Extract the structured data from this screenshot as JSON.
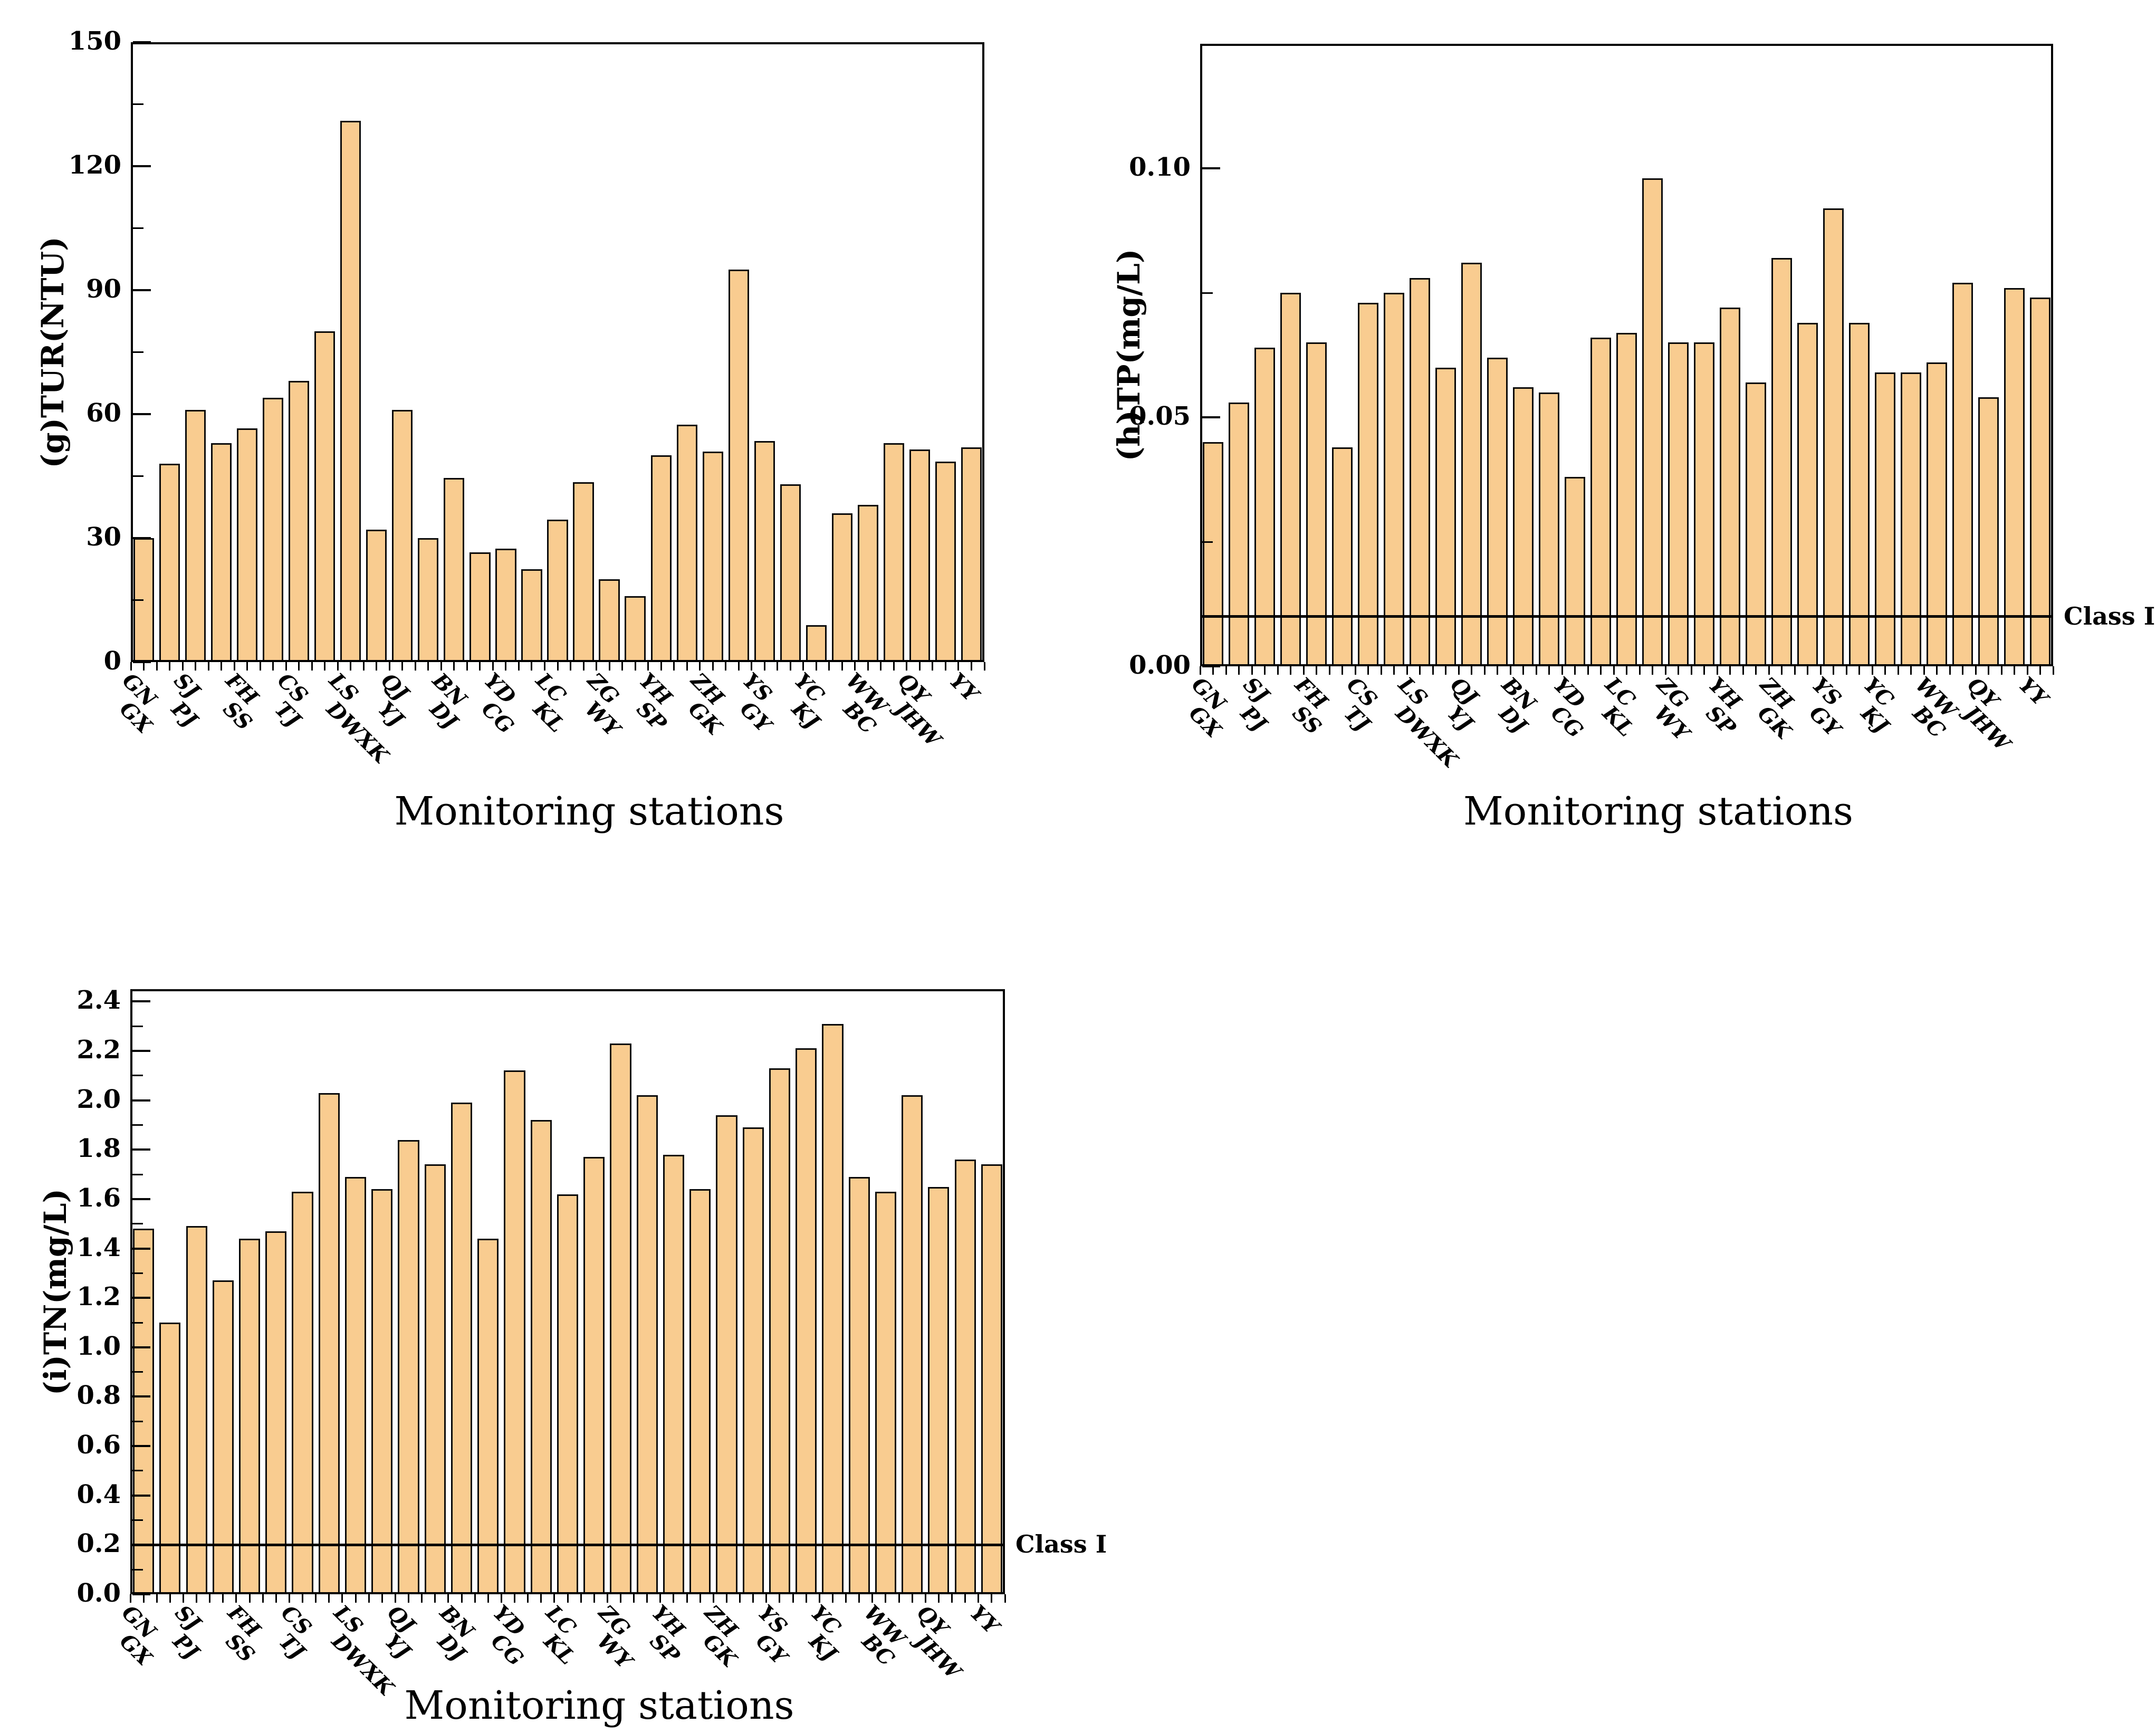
{
  "figure": {
    "xlabel": "Monitoring stations",
    "class_label": "Class I",
    "bar_fill": "#F9CC90",
    "bar_edge": "#0a0a0a",
    "class_line_color": "#000000"
  },
  "categories": [
    "GN",
    "GX",
    "SJ",
    "PJ",
    "FH",
    "SS",
    "CS",
    "TJ",
    "LS",
    "DWXK",
    "QJ",
    "YJ",
    "BN",
    "DJ",
    "YD",
    "CG",
    "LC",
    "KL",
    "ZG",
    "WY",
    "YH",
    "SP",
    "ZH",
    "GK",
    "YS",
    "GY",
    "YC",
    "KJ",
    "WW",
    "BC",
    "QY",
    "JHW",
    "YY"
  ],
  "chart_data": [
    {
      "type": "bar",
      "title": "",
      "ylabel": "(g)TUR(NTU)",
      "xlabel": "Monitoring stations",
      "categories": [
        "GN",
        "GX",
        "SJ",
        "PJ",
        "FH",
        "SS",
        "CS",
        "TJ",
        "LS",
        "DWXK",
        "QJ",
        "YJ",
        "BN",
        "DJ",
        "YD",
        "CG",
        "LC",
        "KL",
        "ZG",
        "WY",
        "YH",
        "SP",
        "ZH",
        "GK",
        "YS",
        "GY",
        "YC",
        "KJ",
        "WW",
        "BC",
        "QY",
        "JHW",
        "YY"
      ],
      "values": [
        30,
        48,
        61,
        53,
        56.5,
        64,
        68,
        80,
        131,
        32,
        61,
        30,
        44.5,
        26.5,
        27.5,
        22.5,
        34.5,
        43.5,
        20,
        16,
        50,
        57.5,
        51,
        95,
        53.5,
        43,
        9,
        36,
        38,
        53,
        51.5,
        48.5,
        52
      ],
      "ylim": [
        0,
        150
      ],
      "ytick_step": 30,
      "ytick_decimals": 0,
      "grid": false,
      "legend": null,
      "class_line": null
    },
    {
      "type": "bar",
      "title": "",
      "ylabel": "(h)TP(mg/L)",
      "xlabel": "Monitoring stations",
      "categories": [
        "GN",
        "GX",
        "SJ",
        "PJ",
        "FH",
        "SS",
        "CS",
        "TJ",
        "LS",
        "DWXK",
        "QJ",
        "YJ",
        "BN",
        "DJ",
        "YD",
        "CG",
        "LC",
        "KL",
        "ZG",
        "WY",
        "YH",
        "SP",
        "ZH",
        "GK",
        "YS",
        "GY",
        "YC",
        "KJ",
        "WW",
        "BC",
        "QY",
        "JHW",
        "YY"
      ],
      "values": [
        0.045,
        0.053,
        0.064,
        0.075,
        0.065,
        0.044,
        0.073,
        0.075,
        0.078,
        0.06,
        0.081,
        0.062,
        0.056,
        0.055,
        0.038,
        0.066,
        0.067,
        0.098,
        0.065,
        0.065,
        0.072,
        0.057,
        0.082,
        0.069,
        0.092,
        0.069,
        0.059,
        0.059,
        0.061,
        0.077,
        0.054,
        0.076,
        0.074
      ],
      "ylim": [
        0,
        0.125
      ],
      "ytick_step": 0.05,
      "ytick_decimals": 2,
      "grid": false,
      "legend": null,
      "class_line": {
        "value": 0.01,
        "label": "Class I"
      }
    },
    {
      "type": "bar",
      "title": "",
      "ylabel": "(i)TN(mg/L)",
      "xlabel": "Monitoring stations",
      "categories": [
        "GN",
        "GX",
        "SJ",
        "PJ",
        "FH",
        "SS",
        "CS",
        "TJ",
        "LS",
        "DWXK",
        "QJ",
        "YJ",
        "BN",
        "DJ",
        "YD",
        "CG",
        "LC",
        "KL",
        "ZG",
        "WY",
        "YH",
        "SP",
        "ZH",
        "GK",
        "YS",
        "GY",
        "YC",
        "KJ",
        "WW",
        "BC",
        "QY",
        "JHW",
        "YY"
      ],
      "values": [
        1.48,
        1.1,
        1.49,
        1.27,
        1.44,
        1.47,
        1.63,
        2.03,
        1.69,
        1.64,
        1.84,
        1.74,
        1.99,
        1.44,
        2.12,
        1.92,
        1.62,
        1.77,
        2.23,
        2.02,
        1.78,
        1.64,
        1.94,
        1.89,
        2.13,
        2.21,
        2.31,
        1.69,
        1.63,
        2.02,
        1.65,
        1.76,
        1.74
      ],
      "ylim": [
        0,
        2.45
      ],
      "ytick_step": 0.2,
      "ytick_decimals": 1,
      "grid": false,
      "legend": null,
      "class_line": {
        "value": 0.2,
        "label": "Class I"
      }
    }
  ]
}
